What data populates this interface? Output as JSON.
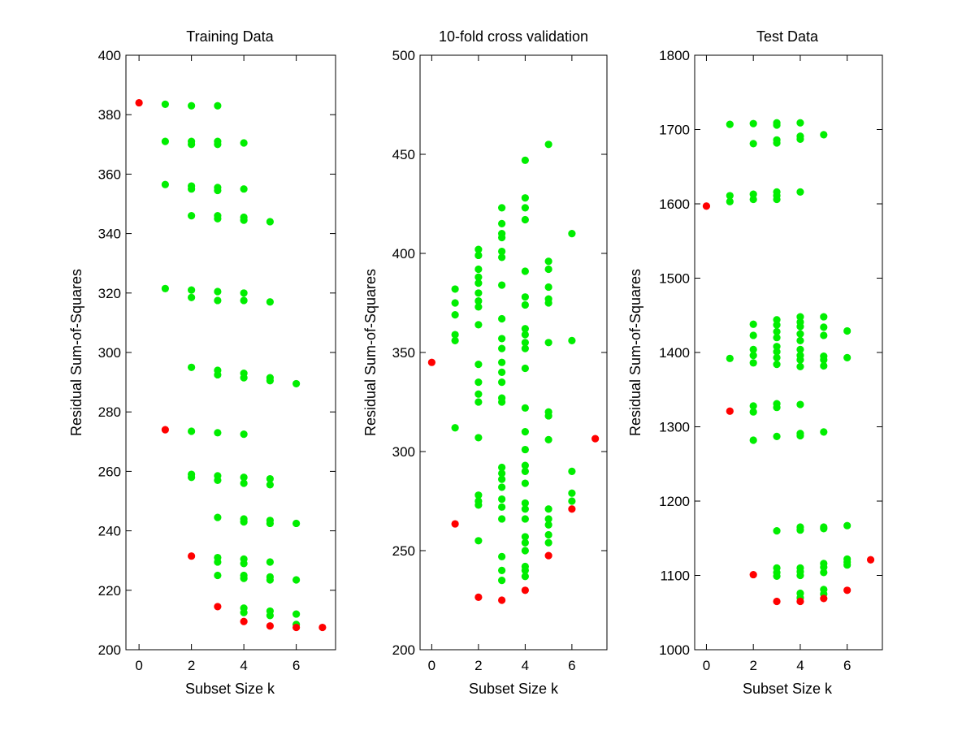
{
  "colors": {
    "selected": "#ff0000",
    "other": "#00ee00",
    "axes": "#000000",
    "background": "#ffffff"
  },
  "chart_data": [
    {
      "type": "scatter",
      "title": "Training Data",
      "xlabel": "Subset Size k",
      "ylabel": "Residual Sum-of-Squares",
      "xlim": [
        -0.5,
        7.5
      ],
      "ylim": [
        200,
        400
      ],
      "xticks": [
        0,
        2,
        4,
        6
      ],
      "yticks": [
        200,
        220,
        240,
        260,
        280,
        300,
        320,
        340,
        360,
        380,
        400
      ],
      "grid": false,
      "series": [
        {
          "color": "#00ee00",
          "points": [
            [
              1,
              383.5
            ],
            [
              1,
              371
            ],
            [
              1,
              356.5
            ],
            [
              1,
              321.5
            ],
            [
              2,
              383
            ],
            [
              2,
              371
            ],
            [
              2,
              370
            ],
            [
              2,
              356
            ],
            [
              2,
              355
            ],
            [
              2,
              346
            ],
            [
              2,
              321
            ],
            [
              2,
              318.5
            ],
            [
              2,
              295
            ],
            [
              2,
              273.5
            ],
            [
              2,
              259
            ],
            [
              2,
              258
            ],
            [
              3,
              383
            ],
            [
              3,
              371
            ],
            [
              3,
              370
            ],
            [
              3,
              355.5
            ],
            [
              3,
              354.5
            ],
            [
              3,
              346
            ],
            [
              3,
              345
            ],
            [
              3,
              320.5
            ],
            [
              3,
              317.5
            ],
            [
              3,
              294
            ],
            [
              3,
              292.5
            ],
            [
              3,
              273
            ],
            [
              3,
              258.5
            ],
            [
              3,
              257
            ],
            [
              3,
              244.5
            ],
            [
              3,
              231
            ],
            [
              3,
              229.5
            ],
            [
              3,
              225
            ],
            [
              4,
              370.5
            ],
            [
              4,
              355
            ],
            [
              4,
              345.5
            ],
            [
              4,
              344.5
            ],
            [
              4,
              320
            ],
            [
              4,
              317.5
            ],
            [
              4,
              293
            ],
            [
              4,
              291.5
            ],
            [
              4,
              272.5
            ],
            [
              4,
              258
            ],
            [
              4,
              256
            ],
            [
              4,
              244
            ],
            [
              4,
              243
            ],
            [
              4,
              230.5
            ],
            [
              4,
              229
            ],
            [
              4,
              225
            ],
            [
              4,
              224
            ],
            [
              4,
              214
            ],
            [
              4,
              212.5
            ],
            [
              5,
              344
            ],
            [
              5,
              317
            ],
            [
              5,
              291.5
            ],
            [
              5,
              290.5
            ],
            [
              5,
              257.5
            ],
            [
              5,
              255.5
            ],
            [
              5,
              243.5
            ],
            [
              5,
              242.5
            ],
            [
              5,
              229.5
            ],
            [
              5,
              224.5
            ],
            [
              5,
              223.5
            ],
            [
              5,
              213
            ],
            [
              5,
              211.5
            ],
            [
              6,
              289.5
            ],
            [
              6,
              242.5
            ],
            [
              6,
              223.5
            ],
            [
              6,
              212
            ],
            [
              6,
              208.5
            ]
          ]
        },
        {
          "color": "#ff0000",
          "points": [
            [
              0,
              384
            ],
            [
              1,
              274
            ],
            [
              2,
              231.5
            ],
            [
              3,
              214.5
            ],
            [
              4,
              209.5
            ],
            [
              5,
              208
            ],
            [
              6,
              207.5
            ],
            [
              7,
              207.5
            ]
          ]
        }
      ]
    },
    {
      "type": "scatter",
      "title": "10-fold cross validation",
      "xlabel": "Subset Size k",
      "ylabel": "Residual Sum-of-Squares",
      "xlim": [
        -0.5,
        7.5
      ],
      "ylim": [
        200,
        500
      ],
      "xticks": [
        0,
        2,
        4,
        6
      ],
      "yticks": [
        200,
        250,
        300,
        350,
        400,
        450,
        500
      ],
      "grid": false,
      "series": [
        {
          "color": "#00ee00",
          "points": [
            [
              1,
              382
            ],
            [
              1,
              375
            ],
            [
              1,
              369
            ],
            [
              1,
              359
            ],
            [
              1,
              356
            ],
            [
              1,
              312
            ],
            [
              2,
              402
            ],
            [
              2,
              399
            ],
            [
              2,
              392
            ],
            [
              2,
              388
            ],
            [
              2,
              385
            ],
            [
              2,
              380
            ],
            [
              2,
              376
            ],
            [
              2,
              373
            ],
            [
              2,
              364
            ],
            [
              2,
              344
            ],
            [
              2,
              335
            ],
            [
              2,
              329
            ],
            [
              2,
              325
            ],
            [
              2,
              307
            ],
            [
              2,
              278
            ],
            [
              2,
              275
            ],
            [
              2,
              273
            ],
            [
              2,
              255
            ],
            [
              3,
              423
            ],
            [
              3,
              415
            ],
            [
              3,
              410
            ],
            [
              3,
              408
            ],
            [
              3,
              401
            ],
            [
              3,
              398
            ],
            [
              3,
              384
            ],
            [
              3,
              367
            ],
            [
              3,
              357
            ],
            [
              3,
              352
            ],
            [
              3,
              345
            ],
            [
              3,
              340
            ],
            [
              3,
              335
            ],
            [
              3,
              327
            ],
            [
              3,
              325
            ],
            [
              3,
              292
            ],
            [
              3,
              289
            ],
            [
              3,
              286
            ],
            [
              3,
              282
            ],
            [
              3,
              276
            ],
            [
              3,
              272
            ],
            [
              3,
              266
            ],
            [
              3,
              247
            ],
            [
              3,
              240
            ],
            [
              3,
              235
            ],
            [
              4,
              447
            ],
            [
              4,
              428
            ],
            [
              4,
              423
            ],
            [
              4,
              417
            ],
            [
              4,
              391
            ],
            [
              4,
              378
            ],
            [
              4,
              374
            ],
            [
              4,
              362
            ],
            [
              4,
              359
            ],
            [
              4,
              355
            ],
            [
              4,
              352
            ],
            [
              4,
              342
            ],
            [
              4,
              322
            ],
            [
              4,
              310
            ],
            [
              4,
              301
            ],
            [
              4,
              293
            ],
            [
              4,
              290
            ],
            [
              4,
              284
            ],
            [
              4,
              274
            ],
            [
              4,
              271
            ],
            [
              4,
              266
            ],
            [
              4,
              257
            ],
            [
              4,
              254
            ],
            [
              4,
              250
            ],
            [
              4,
              242
            ],
            [
              4,
              240
            ],
            [
              4,
              237
            ],
            [
              5,
              455
            ],
            [
              5,
              396
            ],
            [
              5,
              392
            ],
            [
              5,
              383
            ],
            [
              5,
              377
            ],
            [
              5,
              375
            ],
            [
              5,
              355
            ],
            [
              5,
              320
            ],
            [
              5,
              318
            ],
            [
              5,
              306
            ],
            [
              5,
              271
            ],
            [
              5,
              266
            ],
            [
              5,
              263
            ],
            [
              5,
              258
            ],
            [
              5,
              254
            ],
            [
              6,
              410
            ],
            [
              6,
              356
            ],
            [
              6,
              290
            ],
            [
              6,
              279
            ],
            [
              6,
              275
            ]
          ]
        },
        {
          "color": "#ff0000",
          "points": [
            [
              0,
              345
            ],
            [
              1,
              263.5
            ],
            [
              2,
              226.5
            ],
            [
              3,
              225
            ],
            [
              4,
              230
            ],
            [
              5,
              247.5
            ],
            [
              6,
              271
            ],
            [
              7,
              306.5
            ]
          ]
        }
      ]
    },
    {
      "type": "scatter",
      "title": "Test Data",
      "xlabel": "Subset Size k",
      "ylabel": "Residual Sum-of-Squares",
      "xlim": [
        -0.5,
        7.5
      ],
      "ylim": [
        1000,
        1800
      ],
      "xticks": [
        0,
        2,
        4,
        6
      ],
      "yticks": [
        1000,
        1100,
        1200,
        1300,
        1400,
        1500,
        1600,
        1700,
        1800
      ],
      "grid": false,
      "series": [
        {
          "color": "#00ee00",
          "points": [
            [
              1,
              1707
            ],
            [
              1,
              1611
            ],
            [
              1,
              1603
            ],
            [
              1,
              1392
            ],
            [
              2,
              1708
            ],
            [
              2,
              1681
            ],
            [
              2,
              1613
            ],
            [
              2,
              1606
            ],
            [
              2,
              1438
            ],
            [
              2,
              1423
            ],
            [
              2,
              1404
            ],
            [
              2,
              1396
            ],
            [
              2,
              1386
            ],
            [
              2,
              1328
            ],
            [
              2,
              1320
            ],
            [
              2,
              1282
            ],
            [
              3,
              1709
            ],
            [
              3,
              1706
            ],
            [
              3,
              1686
            ],
            [
              3,
              1682
            ],
            [
              3,
              1616
            ],
            [
              3,
              1611
            ],
            [
              3,
              1606
            ],
            [
              3,
              1444
            ],
            [
              3,
              1437
            ],
            [
              3,
              1428
            ],
            [
              3,
              1420
            ],
            [
              3,
              1408
            ],
            [
              3,
              1401
            ],
            [
              3,
              1393
            ],
            [
              3,
              1384
            ],
            [
              3,
              1331
            ],
            [
              3,
              1326
            ],
            [
              3,
              1287
            ],
            [
              3,
              1160
            ],
            [
              3,
              1110
            ],
            [
              3,
              1104
            ],
            [
              3,
              1099
            ],
            [
              4,
              1709
            ],
            [
              4,
              1691
            ],
            [
              4,
              1687
            ],
            [
              4,
              1616
            ],
            [
              4,
              1448
            ],
            [
              4,
              1441
            ],
            [
              4,
              1435
            ],
            [
              4,
              1425
            ],
            [
              4,
              1416
            ],
            [
              4,
              1404
            ],
            [
              4,
              1396
            ],
            [
              4,
              1390
            ],
            [
              4,
              1381
            ],
            [
              4,
              1330
            ],
            [
              4,
              1291
            ],
            [
              4,
              1288
            ],
            [
              4,
              1165
            ],
            [
              4,
              1161
            ],
            [
              4,
              1110
            ],
            [
              4,
              1105
            ],
            [
              4,
              1100
            ],
            [
              4,
              1076
            ],
            [
              4,
              1070
            ],
            [
              5,
              1693
            ],
            [
              5,
              1448
            ],
            [
              5,
              1434
            ],
            [
              5,
              1423
            ],
            [
              5,
              1395
            ],
            [
              5,
              1390
            ],
            [
              5,
              1382
            ],
            [
              5,
              1293
            ],
            [
              5,
              1165
            ],
            [
              5,
              1163
            ],
            [
              5,
              1116
            ],
            [
              5,
              1111
            ],
            [
              5,
              1104
            ],
            [
              5,
              1081
            ],
            [
              5,
              1075
            ],
            [
              6,
              1429
            ],
            [
              6,
              1393
            ],
            [
              6,
              1167
            ],
            [
              6,
              1122
            ],
            [
              6,
              1118
            ],
            [
              6,
              1114
            ]
          ]
        },
        {
          "color": "#ff0000",
          "points": [
            [
              0,
              1597
            ],
            [
              1,
              1321
            ],
            [
              2,
              1101
            ],
            [
              3,
              1065
            ],
            [
              4,
              1065
            ],
            [
              5,
              1069
            ],
            [
              6,
              1080
            ],
            [
              7,
              1121
            ]
          ]
        }
      ]
    }
  ]
}
